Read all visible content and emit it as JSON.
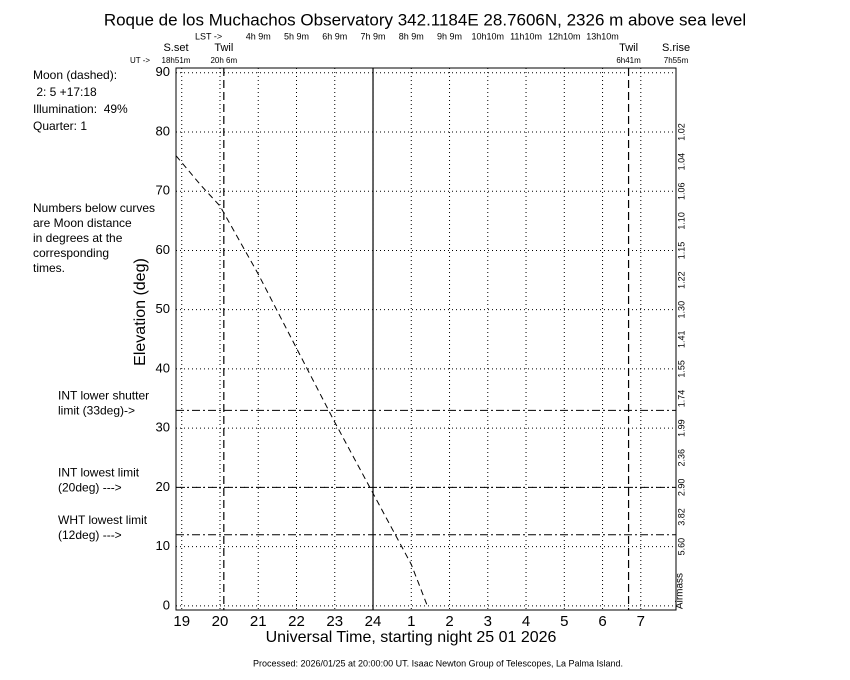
{
  "chart_data": {
    "type": "line",
    "title": "Roque de los Muchachos Observatory 342.1184E  28.7606N, 2326 m above sea level",
    "xlabel": "Universal Time, starting night 25 01 2026",
    "ylabel": "Elevation  (deg)",
    "footer": "Processed: 2026/01/25 at 20:00:00 UT. Isaac  Newton Group of Telescopes, La Palma Island.",
    "xlim": [
      18.85,
      31.92
    ],
    "ylim": [
      -0.7,
      90.8
    ],
    "xticks": [
      19,
      20,
      21,
      22,
      23,
      24,
      {
        "value": 25,
        "label": "1"
      },
      {
        "value": 26,
        "label": "2"
      },
      {
        "value": 27,
        "label": "3"
      },
      {
        "value": 28,
        "label": "4"
      },
      {
        "value": 29,
        "label": "5"
      },
      {
        "value": 30,
        "label": "6"
      },
      {
        "value": 31,
        "label": "7"
      }
    ],
    "yticks": [
      0,
      10,
      20,
      30,
      40,
      50,
      60,
      70,
      80,
      90
    ],
    "grid": true,
    "lst_arrow": "LST ->",
    "ut_arrow": "UT ->",
    "lst": {
      "x": [
        21,
        22,
        23,
        24,
        25,
        26,
        27,
        28,
        29,
        30
      ],
      "labels": [
        "4h 9m",
        "5h 9m",
        "6h 9m",
        "7h 9m",
        "8h 9m",
        "9h 9m",
        "10h10m",
        "11h10m",
        "12h10m",
        "13h10m"
      ]
    },
    "events": [
      {
        "name": "S.set",
        "time": "18h51m",
        "x": 18.85,
        "line": false
      },
      {
        "name": "Twil",
        "time": "20h 6m",
        "x": 20.1,
        "line": true
      },
      {
        "name": "Twil",
        "time": "6h41m",
        "x": 30.68,
        "line": true
      },
      {
        "name": "S.rise",
        "time": "7h55m",
        "x": 31.92,
        "line": false
      }
    ],
    "midnight": 24,
    "limits": [
      {
        "value": 33,
        "lines": [
          "INT lower shutter",
          "limit (33deg)->"
        ]
      },
      {
        "value": 20,
        "lines": [
          "INT lowest limit",
          "(20deg) --->"
        ]
      },
      {
        "value": 12,
        "lines": [
          "WHT lowest limit",
          "(12deg) --->"
        ]
      }
    ],
    "moon_info": [
      "Moon (dashed):",
      " 2: 5 +17:18",
      "Illumination:  49%",
      "Quarter: 1"
    ],
    "note": [
      "Numbers below curves",
      "are Moon distance",
      "in degrees at the",
      "corresponding",
      "times."
    ],
    "airmass_title": "Airmass",
    "airmass": {
      "elevations": [
        80,
        75,
        70,
        65,
        60,
        55,
        50,
        45,
        40,
        35,
        30,
        25,
        20,
        15,
        10
      ],
      "labels": [
        "1.02",
        "1.04",
        "1.06",
        "1.10",
        "1.15",
        "1.22",
        "1.30",
        "1.41",
        "1.55",
        "1.74",
        "1.99",
        "2.36",
        "2.90",
        "3.82",
        "5.60"
      ]
    },
    "series": [
      {
        "name": "Moon",
        "color": "#000000",
        "x": [
          18.85,
          19.5,
          20.0,
          21.0,
          22.0,
          23.0,
          24.0,
          25.0,
          25.42
        ],
        "values": [
          76,
          71,
          67.5,
          56,
          43.5,
          31,
          19,
          7,
          0
        ]
      }
    ]
  }
}
